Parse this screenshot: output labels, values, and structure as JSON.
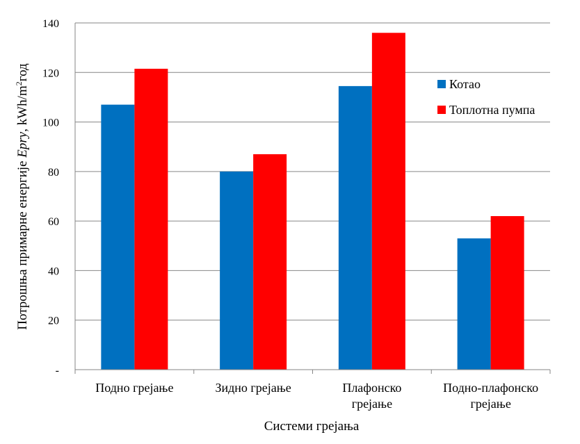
{
  "chart_data": {
    "type": "bar",
    "title": "",
    "xlabel": "Системи грејања",
    "ylabel": "Потрошња примарне енергије Eprу, kWh/m²год",
    "ylim": [
      0,
      140
    ],
    "yticks": [
      0,
      20,
      40,
      60,
      80,
      100,
      120,
      140
    ],
    "ytick_labels": [
      "-",
      "20",
      "40",
      "60",
      "80",
      "100",
      "120",
      "140"
    ],
    "categories": [
      [
        "Подно грејање"
      ],
      [
        "Зидно грејање"
      ],
      [
        "Плафонско",
        "грејање"
      ],
      [
        "Подно-плафонско",
        "грејање"
      ]
    ],
    "series": [
      {
        "name": "Котао",
        "color": "#0070C0",
        "values": [
          107,
          80,
          114.5,
          53
        ]
      },
      {
        "name": "Топлотна пумпа",
        "color": "#FF0000",
        "values": [
          121.5,
          87,
          136,
          62
        ]
      }
    ],
    "grid": true,
    "legend_position": "right"
  }
}
